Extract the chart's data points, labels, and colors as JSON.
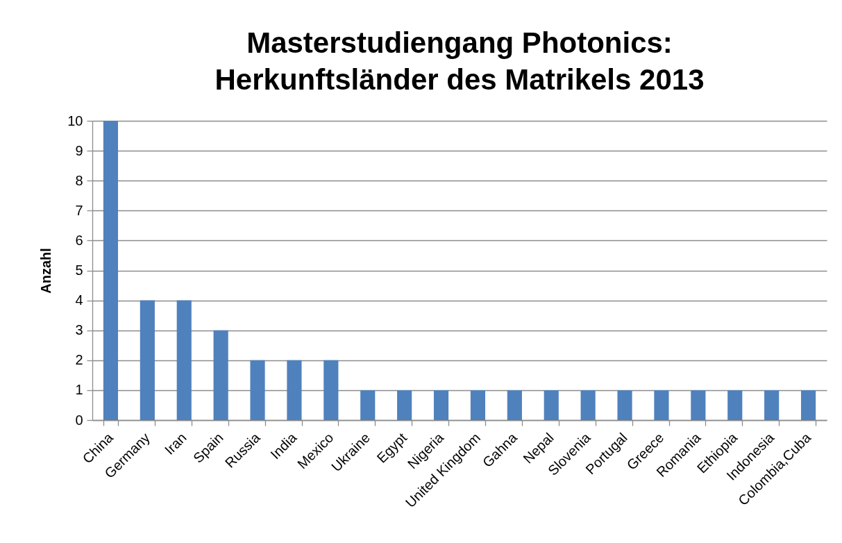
{
  "chart_data": {
    "type": "bar",
    "title": "Masterstudiengang Photonics:\nHerkunftsländer des Matrikels 2013",
    "ylabel": "Anzahl",
    "categories": [
      "China",
      "Germany",
      "Iran",
      "Spain",
      "Russia",
      "India",
      "Mexico",
      "Ukraine",
      "Egypt",
      "Nigeria",
      "United Kingdom",
      "Gahna",
      "Nepal",
      "Slovenia",
      "Portugal",
      "Greece",
      "Romania",
      "Ethiopia",
      "Indonesia",
      "Colombia,Cuba"
    ],
    "values": [
      10,
      4,
      4,
      3,
      2,
      2,
      2,
      1,
      1,
      1,
      1,
      1,
      1,
      1,
      1,
      1,
      1,
      1,
      1,
      1
    ],
    "color": "#4f81bd",
    "ylim": [
      0,
      10
    ],
    "yticks": [
      0,
      1,
      2,
      3,
      4,
      5,
      6,
      7,
      8,
      9,
      10
    ],
    "grid": "y"
  }
}
